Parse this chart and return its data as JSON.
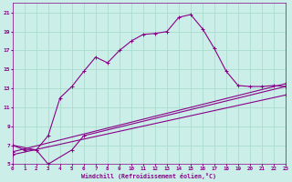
{
  "xlabel": "Windchill (Refroidissement éolien,°C)",
  "bg_color": "#cceee8",
  "grid_color": "#aaddcc",
  "line_color": "#880088",
  "xlim": [
    0,
    23
  ],
  "ylim": [
    5,
    22
  ],
  "xticks": [
    0,
    1,
    2,
    3,
    4,
    5,
    6,
    7,
    8,
    9,
    10,
    11,
    12,
    13,
    14,
    15,
    16,
    17,
    18,
    19,
    20,
    21,
    22,
    23
  ],
  "yticks": [
    5,
    7,
    9,
    11,
    13,
    15,
    17,
    19,
    21
  ],
  "line1_x": [
    0,
    1,
    2,
    3,
    4,
    5,
    6,
    7,
    8,
    9,
    10,
    11,
    12,
    13,
    14,
    15,
    16,
    17,
    18,
    19,
    20,
    21,
    22,
    23
  ],
  "line1_y": [
    7,
    6.5,
    6.5,
    8,
    12,
    13.2,
    14.8,
    16.3,
    15.7,
    17.0,
    18.0,
    18.7,
    18.8,
    19.0,
    20.5,
    20.8,
    19.3,
    17.2,
    14.8,
    13.3,
    13.2,
    13.2,
    13.3,
    13.2
  ],
  "line2_x": [
    0,
    2,
    3,
    5,
    6,
    23
  ],
  "line2_y": [
    7,
    6.5,
    5.0,
    6.5,
    8.0,
    13.2
  ],
  "line3_x": [
    0,
    23
  ],
  "line3_y": [
    6.3,
    13.5
  ],
  "line4_x": [
    0,
    23
  ],
  "line4_y": [
    6.0,
    12.3
  ]
}
